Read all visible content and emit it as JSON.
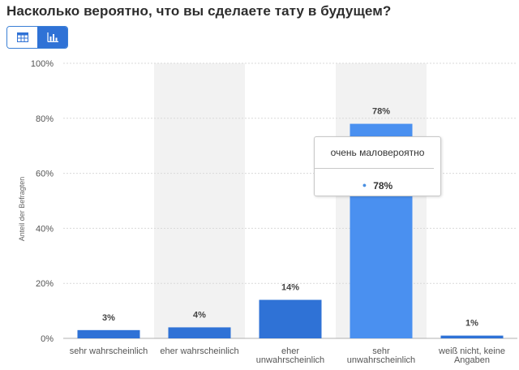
{
  "header": {
    "title": "Насколько вероятно, что вы сделаете тату в будущем?"
  },
  "view_toggle": {
    "table_icon": "table-icon",
    "chart_icon": "bar-chart-icon",
    "active": "chart"
  },
  "colors": {
    "bar": "#2f72d6",
    "bar_highlight": "#4a90f0",
    "band": "#f2f2f2",
    "grid": "#d9d9d9",
    "accent": "#2f72d6"
  },
  "chart_data": {
    "type": "bar",
    "categories": [
      "sehr wahrscheinlich",
      "eher wahrscheinlich",
      "eher unwahrscheinlich",
      "sehr unwahrscheinlich",
      "weiß nicht, keine Angaben"
    ],
    "category_lines": [
      [
        "sehr wahrscheinlich"
      ],
      [
        "eher wahrscheinlich"
      ],
      [
        "eher",
        "unwahrscheinlich"
      ],
      [
        "sehr",
        "unwahrscheinlich"
      ],
      [
        "weiß nicht, keine",
        "Angaben"
      ]
    ],
    "values": [
      3,
      4,
      14,
      78,
      1
    ],
    "data_labels": [
      "3%",
      "4%",
      "14%",
      "78%",
      "1%"
    ],
    "ylabel": "Anteil der Befragten",
    "ylim": [
      0,
      100
    ],
    "yticks": [
      0,
      20,
      40,
      60,
      80,
      100
    ],
    "ytick_labels": [
      "0%",
      "20%",
      "40%",
      "60%",
      "80%",
      "100%"
    ],
    "grid": true,
    "highlighted_index": 3
  },
  "tooltip": {
    "title": "очень маловероятно",
    "value": "78%"
  }
}
